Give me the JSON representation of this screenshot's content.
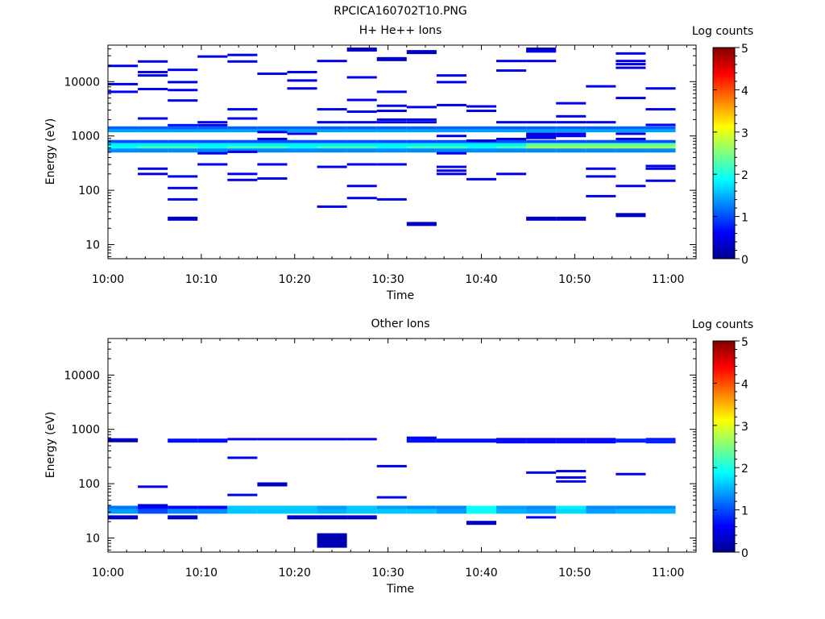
{
  "figure_title": "RPCICA160702T10.PNG",
  "colorbar": {
    "label": "Log counts",
    "range": [
      0,
      5
    ],
    "ticks": [
      "0",
      "1",
      "2",
      "3",
      "4",
      "5"
    ]
  },
  "chart_data": [
    {
      "type": "heatmap",
      "title": "H+ He++ Ions",
      "xlabel": "Time",
      "ylabel": "Energy (eV)",
      "x_tick_labels": [
        "10:00",
        "10:10",
        "10:20",
        "10:30",
        "10:40",
        "10:50",
        "11:00"
      ],
      "y_tick_labels": [
        "10",
        "100",
        "1000",
        "10000"
      ],
      "xlim_minutes": [
        0,
        63
      ],
      "ylim_eV": [
        5.5,
        47000
      ],
      "y_scale": "log",
      "time_bins_start_minutes": [
        0,
        3.2,
        6.4,
        9.6,
        12.8,
        16,
        19.2,
        22.4,
        25.6,
        28.8,
        32,
        35.2,
        38.4,
        41.6,
        44.8,
        48,
        51.2,
        54.4,
        57.6
      ],
      "bin_width_minutes": 3.2,
      "persistent_bands": [
        {
          "energy_eV": 1380,
          "log_counts": 1.1,
          "note": "continuous band"
        },
        {
          "energy_eV": 1250,
          "log_counts": 1.4
        },
        {
          "energy_eV": 760,
          "log_counts": 1.0
        },
        {
          "energy_eV": 670,
          "log_counts": 1.8
        },
        {
          "energy_eV": 600,
          "log_counts": 2.1
        },
        {
          "energy_eV": 540,
          "log_counts": 1.3
        }
      ],
      "sparse_cells": [
        {
          "t": 0,
          "e": 19500,
          "v": 0.5
        },
        {
          "t": 0,
          "e": 9000,
          "v": 0.5
        },
        {
          "t": 0,
          "e": 6500,
          "v": 0.6
        },
        {
          "t": 3.2,
          "e": 23500,
          "v": 0.5
        },
        {
          "t": 3.2,
          "e": 15000,
          "v": 0.5
        },
        {
          "t": 3.2,
          "e": 13000,
          "v": 0.5
        },
        {
          "t": 3.2,
          "e": 7300,
          "v": 0.6
        },
        {
          "t": 3.2,
          "e": 2100,
          "v": 0.5
        },
        {
          "t": 3.2,
          "e": 250,
          "v": 0.5
        },
        {
          "t": 3.2,
          "e": 200,
          "v": 0.5
        },
        {
          "t": 6.4,
          "e": 16500,
          "v": 0.6
        },
        {
          "t": 6.4,
          "e": 9800,
          "v": 0.5
        },
        {
          "t": 6.4,
          "e": 7000,
          "v": 0.6
        },
        {
          "t": 6.4,
          "e": 4500,
          "v": 0.5
        },
        {
          "t": 6.4,
          "e": 1580,
          "v": 0.7
        },
        {
          "t": 6.4,
          "e": 180,
          "v": 0.5
        },
        {
          "t": 6.4,
          "e": 110,
          "v": 0.5
        },
        {
          "t": 6.4,
          "e": 68,
          "v": 0.5
        },
        {
          "t": 6.4,
          "e": 30,
          "v": 0.3
        },
        {
          "t": 9.6,
          "e": 29000,
          "v": 0.5
        },
        {
          "t": 9.6,
          "e": 1790,
          "v": 0.5
        },
        {
          "t": 9.6,
          "e": 1580,
          "v": 0.5
        },
        {
          "t": 9.6,
          "e": 480,
          "v": 0.5
        },
        {
          "t": 9.6,
          "e": 300,
          "v": 0.5
        },
        {
          "t": 12.8,
          "e": 31000,
          "v": 0.5
        },
        {
          "t": 12.8,
          "e": 23500,
          "v": 0.5
        },
        {
          "t": 12.8,
          "e": 3100,
          "v": 0.6
        },
        {
          "t": 12.8,
          "e": 2100,
          "v": 0.5
        },
        {
          "t": 12.8,
          "e": 510,
          "v": 0.5
        },
        {
          "t": 12.8,
          "e": 200,
          "v": 0.6
        },
        {
          "t": 12.8,
          "e": 155,
          "v": 0.5
        },
        {
          "t": 16,
          "e": 14000,
          "v": 0.5
        },
        {
          "t": 16,
          "e": 1180,
          "v": 0.5
        },
        {
          "t": 16,
          "e": 880,
          "v": 0.4
        },
        {
          "t": 16,
          "e": 300,
          "v": 0.5
        },
        {
          "t": 16,
          "e": 165,
          "v": 0.5
        },
        {
          "t": 19.2,
          "e": 15000,
          "v": 0.5
        },
        {
          "t": 19.2,
          "e": 10500,
          "v": 0.5
        },
        {
          "t": 19.2,
          "e": 7500,
          "v": 0.5
        },
        {
          "t": 19.2,
          "e": 1100,
          "v": 0.5
        },
        {
          "t": 22.4,
          "e": 24000,
          "v": 0.5
        },
        {
          "t": 22.4,
          "e": 3100,
          "v": 0.5
        },
        {
          "t": 22.4,
          "e": 1790,
          "v": 0.5
        },
        {
          "t": 22.4,
          "e": 270,
          "v": 0.5
        },
        {
          "t": 22.4,
          "e": 50,
          "v": 0.5
        },
        {
          "t": 25.6,
          "e": 39000,
          "v": 0.3
        },
        {
          "t": 25.6,
          "e": 12000,
          "v": 0.5
        },
        {
          "t": 25.6,
          "e": 4600,
          "v": 0.5
        },
        {
          "t": 25.6,
          "e": 2800,
          "v": 0.5
        },
        {
          "t": 25.6,
          "e": 1790,
          "v": 0.5
        },
        {
          "t": 25.6,
          "e": 300,
          "v": 0.5
        },
        {
          "t": 25.6,
          "e": 120,
          "v": 0.5
        },
        {
          "t": 25.6,
          "e": 72,
          "v": 0.5
        },
        {
          "t": 28.8,
          "e": 26000,
          "v": 0.3
        },
        {
          "t": 28.8,
          "e": 6500,
          "v": 0.5
        },
        {
          "t": 28.8,
          "e": 3600,
          "v": 0.5
        },
        {
          "t": 28.8,
          "e": 2900,
          "v": 0.5
        },
        {
          "t": 28.8,
          "e": 2000,
          "v": 0.5
        },
        {
          "t": 28.8,
          "e": 1790,
          "v": 0.5
        },
        {
          "t": 28.8,
          "e": 300,
          "v": 0.5
        },
        {
          "t": 28.8,
          "e": 68,
          "v": 0.5
        },
        {
          "t": 32,
          "e": 35000,
          "v": 0.3
        },
        {
          "t": 32,
          "e": 3400,
          "v": 0.5
        },
        {
          "t": 32,
          "e": 2000,
          "v": 0.5
        },
        {
          "t": 32,
          "e": 1790,
          "v": 0.5
        },
        {
          "t": 32,
          "e": 24,
          "v": 0.3
        },
        {
          "t": 35.2,
          "e": 13000,
          "v": 0.5
        },
        {
          "t": 35.2,
          "e": 9800,
          "v": 0.5
        },
        {
          "t": 35.2,
          "e": 3700,
          "v": 0.5
        },
        {
          "t": 35.2,
          "e": 1000,
          "v": 0.5
        },
        {
          "t": 35.2,
          "e": 480,
          "v": 0.5
        },
        {
          "t": 35.2,
          "e": 270,
          "v": 0.5
        },
        {
          "t": 35.2,
          "e": 230,
          "v": 0.5
        },
        {
          "t": 35.2,
          "e": 200,
          "v": 0.5
        },
        {
          "t": 38.4,
          "e": 3500,
          "v": 0.5
        },
        {
          "t": 38.4,
          "e": 2900,
          "v": 0.5
        },
        {
          "t": 38.4,
          "e": 820,
          "v": 0.5
        },
        {
          "t": 38.4,
          "e": 160,
          "v": 0.5
        },
        {
          "t": 41.6,
          "e": 24000,
          "v": 0.5
        },
        {
          "t": 41.6,
          "e": 16000,
          "v": 0.5
        },
        {
          "t": 41.6,
          "e": 1790,
          "v": 0.5
        },
        {
          "t": 41.6,
          "e": 880,
          "v": 0.5
        },
        {
          "t": 41.6,
          "e": 200,
          "v": 0.5
        },
        {
          "t": 44.8,
          "e": 39000,
          "v": 0.3
        },
        {
          "t": 44.8,
          "e": 36000,
          "v": 0.5
        },
        {
          "t": 44.8,
          "e": 24000,
          "v": 0.5
        },
        {
          "t": 44.8,
          "e": 1790,
          "v": 0.5
        },
        {
          "t": 44.8,
          "e": 1100,
          "v": 0.5
        },
        {
          "t": 44.8,
          "e": 1000,
          "v": 0.5
        },
        {
          "t": 44.8,
          "e": 920,
          "v": 0.5
        },
        {
          "t": 44.8,
          "e": 30,
          "v": 0.3
        },
        {
          "t": 48,
          "e": 4000,
          "v": 0.5
        },
        {
          "t": 48,
          "e": 2300,
          "v": 0.5
        },
        {
          "t": 48,
          "e": 1790,
          "v": 0.5
        },
        {
          "t": 48,
          "e": 1100,
          "v": 0.5
        },
        {
          "t": 48,
          "e": 1000,
          "v": 0.5
        },
        {
          "t": 48,
          "e": 30,
          "v": 0.3
        },
        {
          "t": 51.2,
          "e": 8200,
          "v": 0.5
        },
        {
          "t": 51.2,
          "e": 1790,
          "v": 0.5
        },
        {
          "t": 51.2,
          "e": 250,
          "v": 0.5
        },
        {
          "t": 51.2,
          "e": 180,
          "v": 0.5
        },
        {
          "t": 51.2,
          "e": 78,
          "v": 0.5
        },
        {
          "t": 54.4,
          "e": 33000,
          "v": 0.5
        },
        {
          "t": 54.4,
          "e": 24000,
          "v": 0.5
        },
        {
          "t": 54.4,
          "e": 21000,
          "v": 0.5
        },
        {
          "t": 54.4,
          "e": 18000,
          "v": 0.5
        },
        {
          "t": 54.4,
          "e": 5000,
          "v": 0.5
        },
        {
          "t": 54.4,
          "e": 1100,
          "v": 0.5
        },
        {
          "t": 54.4,
          "e": 880,
          "v": 0.5
        },
        {
          "t": 54.4,
          "e": 120,
          "v": 0.5
        },
        {
          "t": 54.4,
          "e": 35,
          "v": 0.3
        },
        {
          "t": 57.6,
          "e": 7500,
          "v": 0.5
        },
        {
          "t": 57.6,
          "e": 3100,
          "v": 0.5
        },
        {
          "t": 57.6,
          "e": 1600,
          "v": 0.6
        },
        {
          "t": 57.6,
          "e": 280,
          "v": 0.5
        },
        {
          "t": 57.6,
          "e": 250,
          "v": 0.5
        },
        {
          "t": 57.6,
          "e": 150,
          "v": 0.5
        }
      ]
    },
    {
      "type": "heatmap",
      "title": "Other Ions",
      "xlabel": "Time",
      "ylabel": "Energy (eV)",
      "x_tick_labels": [
        "10:00",
        "10:10",
        "10:20",
        "10:30",
        "10:40",
        "10:50",
        "11:00"
      ],
      "y_tick_labels": [
        "10",
        "100",
        "1000",
        "10000"
      ],
      "xlim_minutes": [
        0,
        63
      ],
      "ylim_eV": [
        5.5,
        47000
      ],
      "y_scale": "log",
      "bin_width_minutes": 3.2,
      "band_36eV_log_counts": [
        1.2,
        0.6,
        0.6,
        0.6,
        1.6,
        1.6,
        1.6,
        1.4,
        1.6,
        1.4,
        1.3,
        1.3,
        1.9,
        1.4,
        1.3,
        1.8,
        1.3,
        1.3,
        1.3
      ],
      "band_31eV_log_counts": [
        1.4,
        1.0,
        1.3,
        1.3,
        1.6,
        1.6,
        1.6,
        1.5,
        1.6,
        1.6,
        1.6,
        1.4,
        1.9,
        1.5,
        1.4,
        1.7,
        1.4,
        1.5,
        1.5
      ],
      "sparse_cells": [
        {
          "t": 0,
          "e": 630,
          "v": 0.3
        },
        {
          "t": 0,
          "e": 24,
          "v": 0.3
        },
        {
          "t": 3.2,
          "e": 88,
          "v": 0.5
        },
        {
          "t": 3.2,
          "e": 40,
          "v": 0.5
        },
        {
          "t": 6.4,
          "e": 620,
          "v": 0.7
        },
        {
          "t": 6.4,
          "e": 24,
          "v": 0.3
        },
        {
          "t": 9.6,
          "e": 620,
          "v": 0.7
        },
        {
          "t": 12.8,
          "e": 660,
          "v": 0.5
        },
        {
          "t": 12.8,
          "e": 300,
          "v": 0.5
        },
        {
          "t": 12.8,
          "e": 62,
          "v": 0.5
        },
        {
          "t": 16,
          "e": 660,
          "v": 0.5
        },
        {
          "t": 16,
          "e": 97,
          "v": 0.3
        },
        {
          "t": 19.2,
          "e": 660,
          "v": 0.5
        },
        {
          "t": 19.2,
          "e": 24,
          "v": 0.3
        },
        {
          "t": 22.4,
          "e": 660,
          "v": 0.5
        },
        {
          "t": 22.4,
          "e": 24,
          "v": 0.3
        },
        {
          "t": 22.4,
          "e": 9,
          "v": 0.2
        },
        {
          "t": 25.6,
          "e": 660,
          "v": 0.5
        },
        {
          "t": 25.6,
          "e": 24,
          "v": 0.3
        },
        {
          "t": 28.8,
          "e": 210,
          "v": 0.5
        },
        {
          "t": 28.8,
          "e": 56,
          "v": 0.5
        },
        {
          "t": 32,
          "e": 700,
          "v": 0.5
        },
        {
          "t": 32,
          "e": 620,
          "v": 0.7
        },
        {
          "t": 35.2,
          "e": 620,
          "v": 0.7
        },
        {
          "t": 38.4,
          "e": 620,
          "v": 0.7
        },
        {
          "t": 38.4,
          "e": 19,
          "v": 0.3
        },
        {
          "t": 41.6,
          "e": 660,
          "v": 0.5
        },
        {
          "t": 41.6,
          "e": 600,
          "v": 0.7
        },
        {
          "t": 44.8,
          "e": 660,
          "v": 0.5
        },
        {
          "t": 44.8,
          "e": 600,
          "v": 0.7
        },
        {
          "t": 44.8,
          "e": 160,
          "v": 0.5
        },
        {
          "t": 44.8,
          "e": 24,
          "v": 0.6
        },
        {
          "t": 48,
          "e": 660,
          "v": 0.5
        },
        {
          "t": 48,
          "e": 600,
          "v": 0.7
        },
        {
          "t": 48,
          "e": 170,
          "v": 0.5
        },
        {
          "t": 48,
          "e": 130,
          "v": 0.5
        },
        {
          "t": 48,
          "e": 110,
          "v": 0.5
        },
        {
          "t": 51.2,
          "e": 660,
          "v": 0.5
        },
        {
          "t": 51.2,
          "e": 600,
          "v": 0.7
        },
        {
          "t": 54.4,
          "e": 620,
          "v": 0.8
        },
        {
          "t": 54.4,
          "e": 150,
          "v": 0.5
        },
        {
          "t": 57.6,
          "e": 660,
          "v": 0.7
        },
        {
          "t": 57.6,
          "e": 600,
          "v": 0.8
        }
      ]
    }
  ]
}
